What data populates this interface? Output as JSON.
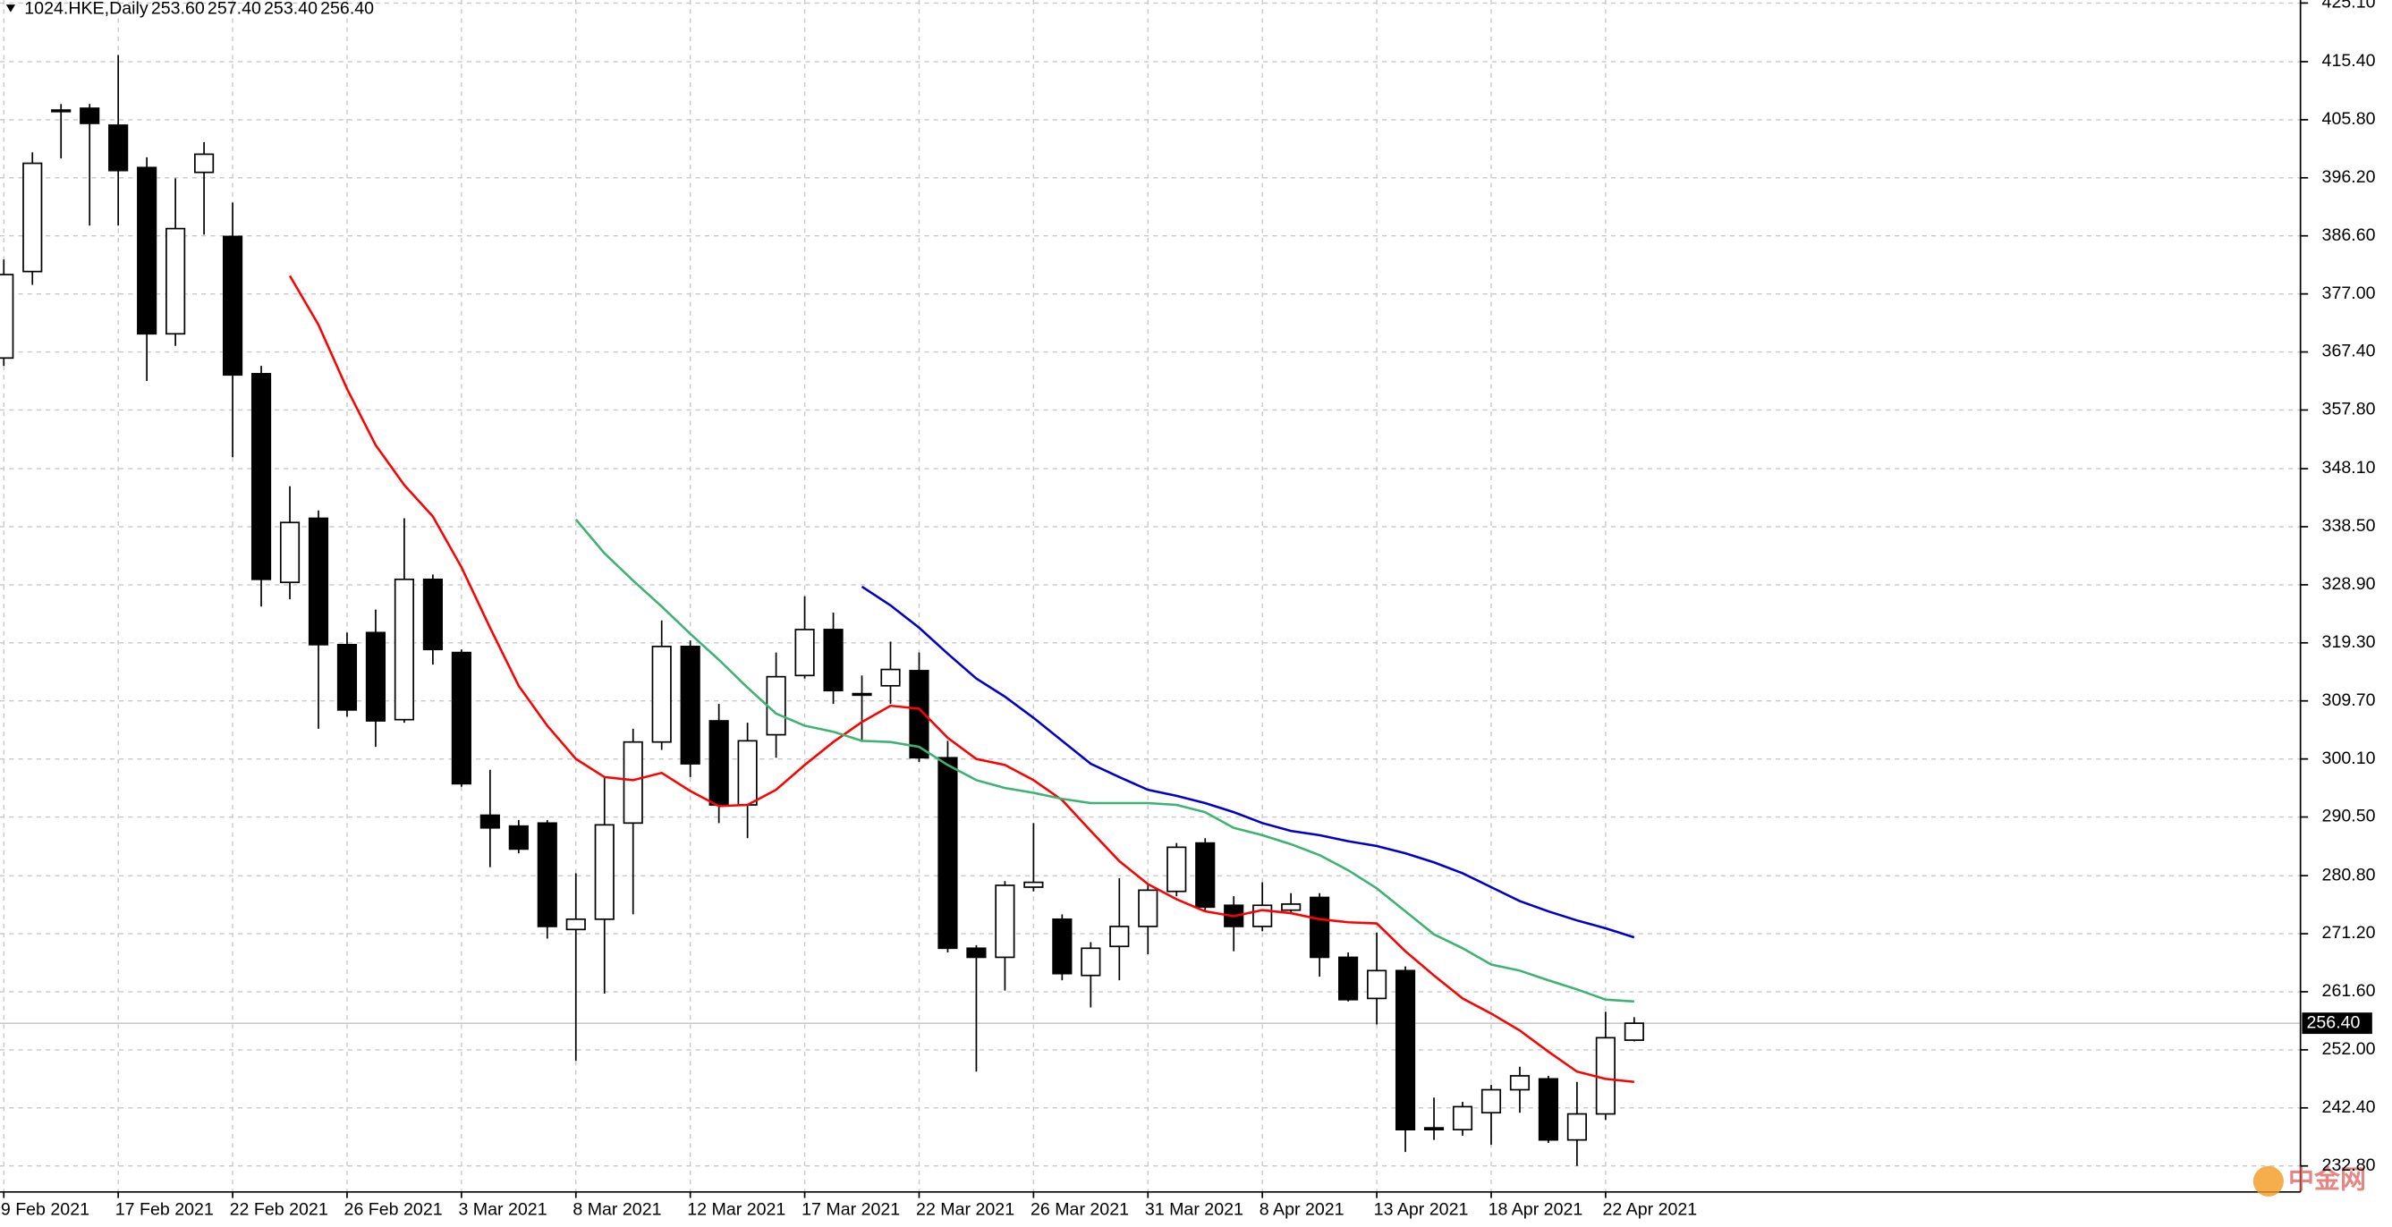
{
  "chart_data": {
    "type": "candlestick",
    "title": "1024.HKE,Daily",
    "last_bar_labels": [
      "253.60",
      "257.40",
      "253.40",
      "256.40"
    ],
    "watermark": "中金网",
    "categories": [
      "9 Feb 2021",
      null,
      null,
      null,
      "17 Feb 2021",
      null,
      null,
      null,
      "22 Feb 2021",
      null,
      null,
      null,
      "26 Feb 2021",
      null,
      null,
      null,
      "3 Mar 2021",
      null,
      null,
      null,
      "8 Mar 2021",
      null,
      null,
      null,
      "12 Mar 2021",
      null,
      null,
      null,
      "17 Mar 2021",
      null,
      null,
      null,
      "22 Mar 2021",
      null,
      null,
      null,
      "26 Mar 2021",
      null,
      null,
      null,
      "31 Mar 2021",
      null,
      null,
      null,
      "8 Apr 2021",
      null,
      null,
      null,
      "13 Apr 2021",
      null,
      null,
      null,
      "18 Apr 2021",
      null,
      null,
      null,
      "22 Apr 2021",
      null
    ],
    "open": [
      366.4,
      380.7,
      407.2,
      407.7,
      404.9,
      397.9,
      370.4,
      397.1,
      386.5,
      363.8,
      329.3,
      339.9,
      319.0,
      321.0,
      306.6,
      329.8,
      317.7,
      290.8,
      289.0,
      289.5,
      271.9,
      273.6,
      289.5,
      302.9,
      318.7,
      306.4,
      292.5,
      304.1,
      313.9,
      321.5,
      310.9,
      312.2,
      314.7,
      300.3,
      268.8,
      267.3,
      278.9,
      273.6,
      264.3,
      269.1,
      272.4,
      278.2,
      286.2,
      275.9,
      272.4,
      275.1,
      277.2,
      267.3,
      260.5,
      265.1,
      239.1,
      238.8,
      241.6,
      245.4,
      247.2,
      237.1,
      241.4,
      253.6
    ],
    "high": [
      382.7,
      400.4,
      408.4,
      408.4,
      416.5,
      399.6,
      396.1,
      402.1,
      392.1,
      365.1,
      345.2,
      341.2,
      321.0,
      324.8,
      339.9,
      330.6,
      318.2,
      298.3,
      290.0,
      290.0,
      281.2,
      297.1,
      305.1,
      323.0,
      319.7,
      309.2,
      306.1,
      317.7,
      327.0,
      324.3,
      313.9,
      319.5,
      317.7,
      303.1,
      269.3,
      279.9,
      289.5,
      274.4,
      269.8,
      280.4,
      279.4,
      286.2,
      287.0,
      277.4,
      279.7,
      277.9,
      277.9,
      268.1,
      271.4,
      265.8,
      244.1,
      243.4,
      246.2,
      249.2,
      247.7,
      246.7,
      258.3,
      257.4
    ],
    "low": [
      365.1,
      378.5,
      399.4,
      388.3,
      388.3,
      362.6,
      368.4,
      386.8,
      350.0,
      325.3,
      326.5,
      305.1,
      307.1,
      302.1,
      306.1,
      315.7,
      295.5,
      282.2,
      284.5,
      270.4,
      250.2,
      261.3,
      274.4,
      301.6,
      297.1,
      289.5,
      287.0,
      300.3,
      313.4,
      309.2,
      302.9,
      309.2,
      299.6,
      268.1,
      248.4,
      261.8,
      278.2,
      263.5,
      259.0,
      263.5,
      267.8,
      277.4,
      275.1,
      268.3,
      271.6,
      274.4,
      264.1,
      260.0,
      256.2,
      235.1,
      237.1,
      237.8,
      236.3,
      241.6,
      236.6,
      232.8,
      240.4,
      253.4
    ],
    "close": [
      380.2,
      398.6,
      407.4,
      405.2,
      397.4,
      370.4,
      387.8,
      400.1,
      363.6,
      329.8,
      339.2,
      319.0,
      308.2,
      306.4,
      329.8,
      318.2,
      296.0,
      288.7,
      285.2,
      272.4,
      273.6,
      289.2,
      302.9,
      318.7,
      299.3,
      292.5,
      303.1,
      313.7,
      321.5,
      311.4,
      310.7,
      314.9,
      300.3,
      268.8,
      267.3,
      279.2,
      279.7,
      264.6,
      268.8,
      272.4,
      278.4,
      285.5,
      275.6,
      272.4,
      275.9,
      276.1,
      267.3,
      260.3,
      265.1,
      238.8,
      238.8,
      242.6,
      245.4,
      247.7,
      237.1,
      241.4,
      254.0,
      256.4
    ],
    "up_color": "#ffffff",
    "down_color": "#000000",
    "series": [
      {
        "color": "#ff0000",
        "values": [
          null,
          null,
          null,
          null,
          null,
          null,
          null,
          null,
          null,
          null,
          380.0,
          371.9,
          361.3,
          352.0,
          345.4,
          340.2,
          331.8,
          321.8,
          312.2,
          305.6,
          300.1,
          297.1,
          296.6,
          297.8,
          294.8,
          292.3,
          292.5,
          295.0,
          299.1,
          302.9,
          306.2,
          308.9,
          308.4,
          303.6,
          300.1,
          299.1,
          296.6,
          293.3,
          288.2,
          283.2,
          279.4,
          276.9,
          274.9,
          274.1,
          275.1,
          274.6,
          273.6,
          273.1,
          272.9,
          268.3,
          264.3,
          260.5,
          258.0,
          255.2,
          251.7,
          248.4,
          247.2,
          246.7
        ]
      },
      {
        "color": "#3cb371",
        "values": [
          null,
          null,
          null,
          null,
          null,
          null,
          null,
          null,
          null,
          null,
          null,
          null,
          null,
          null,
          null,
          null,
          null,
          null,
          null,
          null,
          339.7,
          334.1,
          329.6,
          325.3,
          320.8,
          316.5,
          311.9,
          307.6,
          305.6,
          304.6,
          303.1,
          302.9,
          302.1,
          299.1,
          296.6,
          295.3,
          294.5,
          293.5,
          292.8,
          292.8,
          292.8,
          292.5,
          291.3,
          288.7,
          287.5,
          286.0,
          284.2,
          281.7,
          278.7,
          274.9,
          271.1,
          268.8,
          266.1,
          265.1,
          263.5,
          262.0,
          260.3,
          260.0
        ]
      },
      {
        "color": "#0000cd",
        "values": [
          null,
          null,
          null,
          null,
          null,
          null,
          null,
          null,
          null,
          null,
          null,
          null,
          null,
          null,
          null,
          null,
          null,
          null,
          null,
          null,
          null,
          null,
          null,
          null,
          null,
          null,
          null,
          null,
          null,
          null,
          328.6,
          325.5,
          321.8,
          317.5,
          313.4,
          310.4,
          306.9,
          303.1,
          299.3,
          297.1,
          295.0,
          294.0,
          292.8,
          291.3,
          289.5,
          288.2,
          287.5,
          286.5,
          285.7,
          284.5,
          283.0,
          281.2,
          278.9,
          276.6,
          274.9,
          273.4,
          272.1,
          270.6
        ]
      }
    ],
    "last_price": {
      "value": 256.4,
      "label": "256.40"
    },
    "ylim": [
      228.5,
      425.6
    ],
    "yticks": [
      {
        "value": 425.1,
        "label": "425.10"
      },
      {
        "value": 415.4,
        "label": "415.40"
      },
      {
        "value": 405.8,
        "label": "405.80"
      },
      {
        "value": 396.2,
        "label": "396.20"
      },
      {
        "value": 386.6,
        "label": "386.60"
      },
      {
        "value": 377.0,
        "label": "377.00"
      },
      {
        "value": 367.4,
        "label": "367.40"
      },
      {
        "value": 357.8,
        "label": "357.80"
      },
      {
        "value": 348.1,
        "label": "348.10"
      },
      {
        "value": 338.5,
        "label": "338.50"
      },
      {
        "value": 328.9,
        "label": "328.90"
      },
      {
        "value": 319.3,
        "label": "319.30"
      },
      {
        "value": 309.7,
        "label": "309.70"
      },
      {
        "value": 300.1,
        "label": "300.10"
      },
      {
        "value": 290.5,
        "label": "290.50"
      },
      {
        "value": 280.8,
        "label": "280.80"
      },
      {
        "value": 271.2,
        "label": "271.20"
      },
      {
        "value": 261.6,
        "label": "261.60"
      },
      {
        "value": 252.0,
        "label": "252.00"
      },
      {
        "value": 242.4,
        "label": "242.40"
      },
      {
        "value": 232.8,
        "label": "232.80"
      }
    ],
    "grid": true
  }
}
